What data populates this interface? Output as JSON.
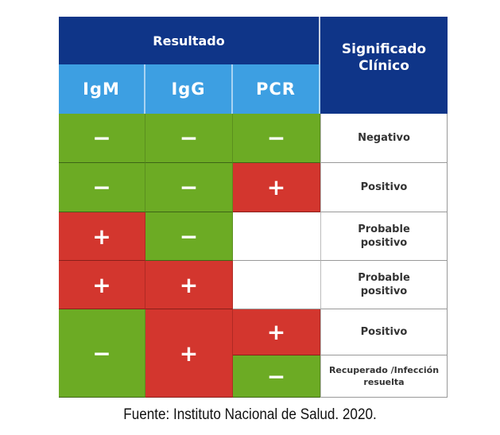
{
  "header": {
    "group": "Resultado",
    "meaning": "Significado Clínico",
    "cols": [
      "IgM",
      "IgG",
      "PCR"
    ]
  },
  "rows": [
    {
      "igm": "−",
      "igg": "−",
      "pcr": "−",
      "meaning": "Negativo"
    },
    {
      "igm": "−",
      "igg": "−",
      "pcr": "+",
      "meaning": "Positivo"
    },
    {
      "igm": "+",
      "igg": "−",
      "pcr": "",
      "meaning": "Probable positivo"
    },
    {
      "igm": "+",
      "igg": "+",
      "pcr": "",
      "meaning": "Probable positivo"
    },
    {
      "igm": "−",
      "igg": "+",
      "pcr": "+",
      "meaning": "Positivo"
    },
    {
      "pcr": "−",
      "meaning": "Recuperado /Infección resuelta"
    }
  ],
  "caption": "Fuente: Instituto Nacional de Salud. 2020.",
  "colors": {
    "header": "#0f3588",
    "subheader": "#3d9fe2",
    "negative": "#6cab24",
    "positive": "#d3362e"
  }
}
